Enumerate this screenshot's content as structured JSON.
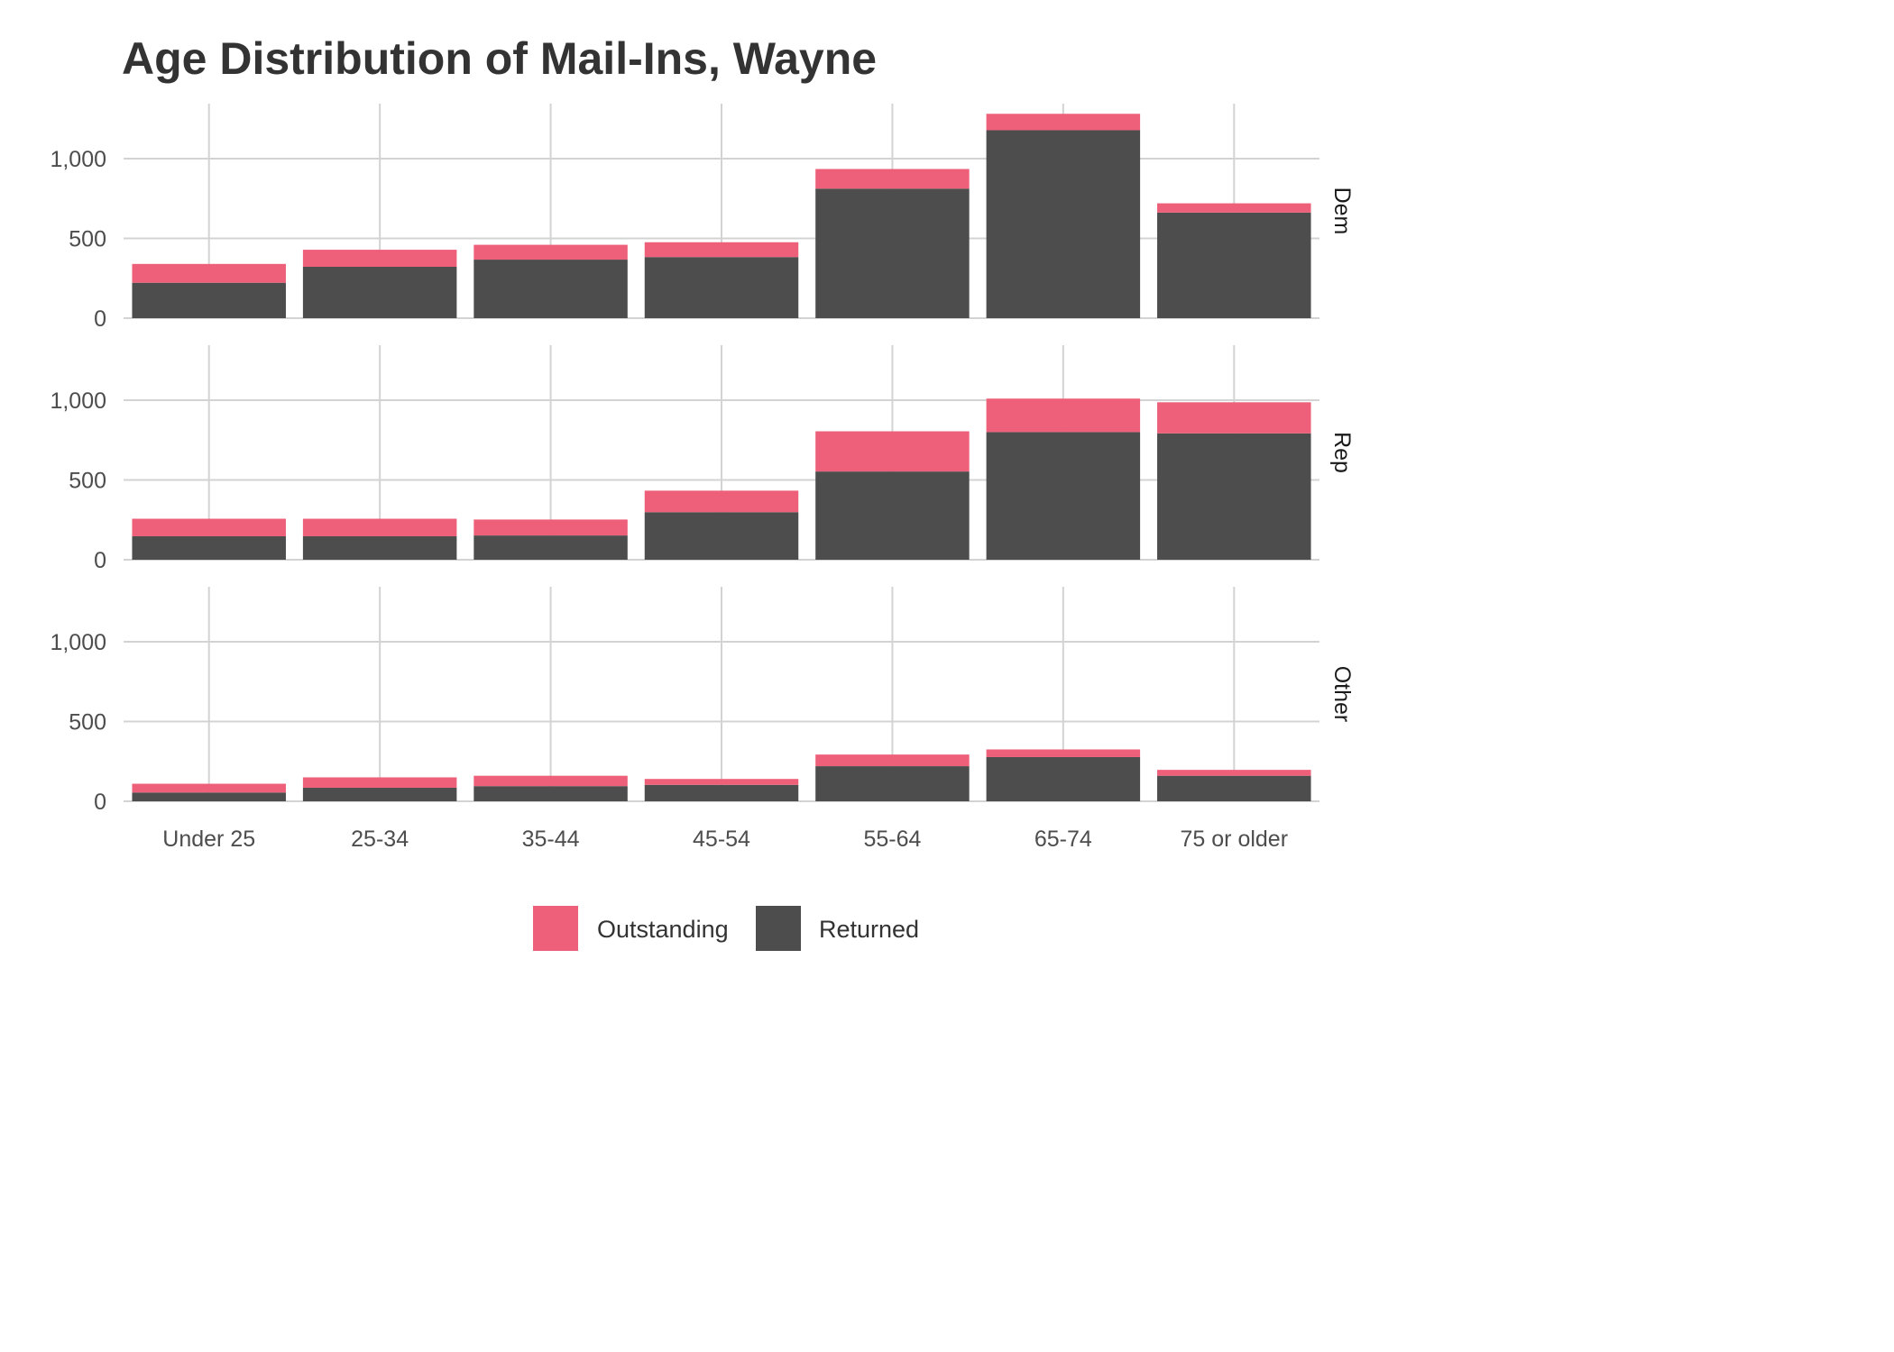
{
  "chart_data": {
    "type": "bar",
    "stacked": true,
    "faceted": true,
    "title": "Age Distribution of Mail-Ins, Wayne",
    "categories": [
      "Under 25",
      "25-34",
      "35-44",
      "45-54",
      "55-64",
      "65-74",
      "75 or older"
    ],
    "y_ticks": [
      0,
      500,
      1000
    ],
    "y_tick_labels": [
      "0",
      "500",
      "1,000"
    ],
    "ylim": [
      0,
      1340
    ],
    "grid": true,
    "legend_position": "bottom",
    "series_order": [
      "Outstanding",
      "Returned"
    ],
    "colors": {
      "Outstanding": "#EE6079",
      "Returned": "#4D4D4D"
    },
    "facets": [
      {
        "label": "Dem",
        "series": [
          {
            "name": "Returned",
            "values": [
              222,
              322,
              367,
              383,
              812,
              1178,
              662
            ]
          },
          {
            "name": "Outstanding",
            "values": [
              118,
              107,
              93,
              93,
              123,
              103,
              58
            ]
          }
        ]
      },
      {
        "label": "Rep",
        "series": [
          {
            "name": "Returned",
            "values": [
              147,
              147,
              152,
              298,
              553,
              800,
              792
            ]
          },
          {
            "name": "Outstanding",
            "values": [
              110,
              110,
              100,
              135,
              252,
              210,
              195
            ]
          }
        ]
      },
      {
        "label": "Other",
        "series": [
          {
            "name": "Returned",
            "values": [
              55,
              85,
              95,
              103,
              220,
              277,
              160
            ]
          },
          {
            "name": "Outstanding",
            "values": [
              55,
              65,
              65,
              37,
              73,
              48,
              37
            ]
          }
        ]
      }
    ]
  }
}
